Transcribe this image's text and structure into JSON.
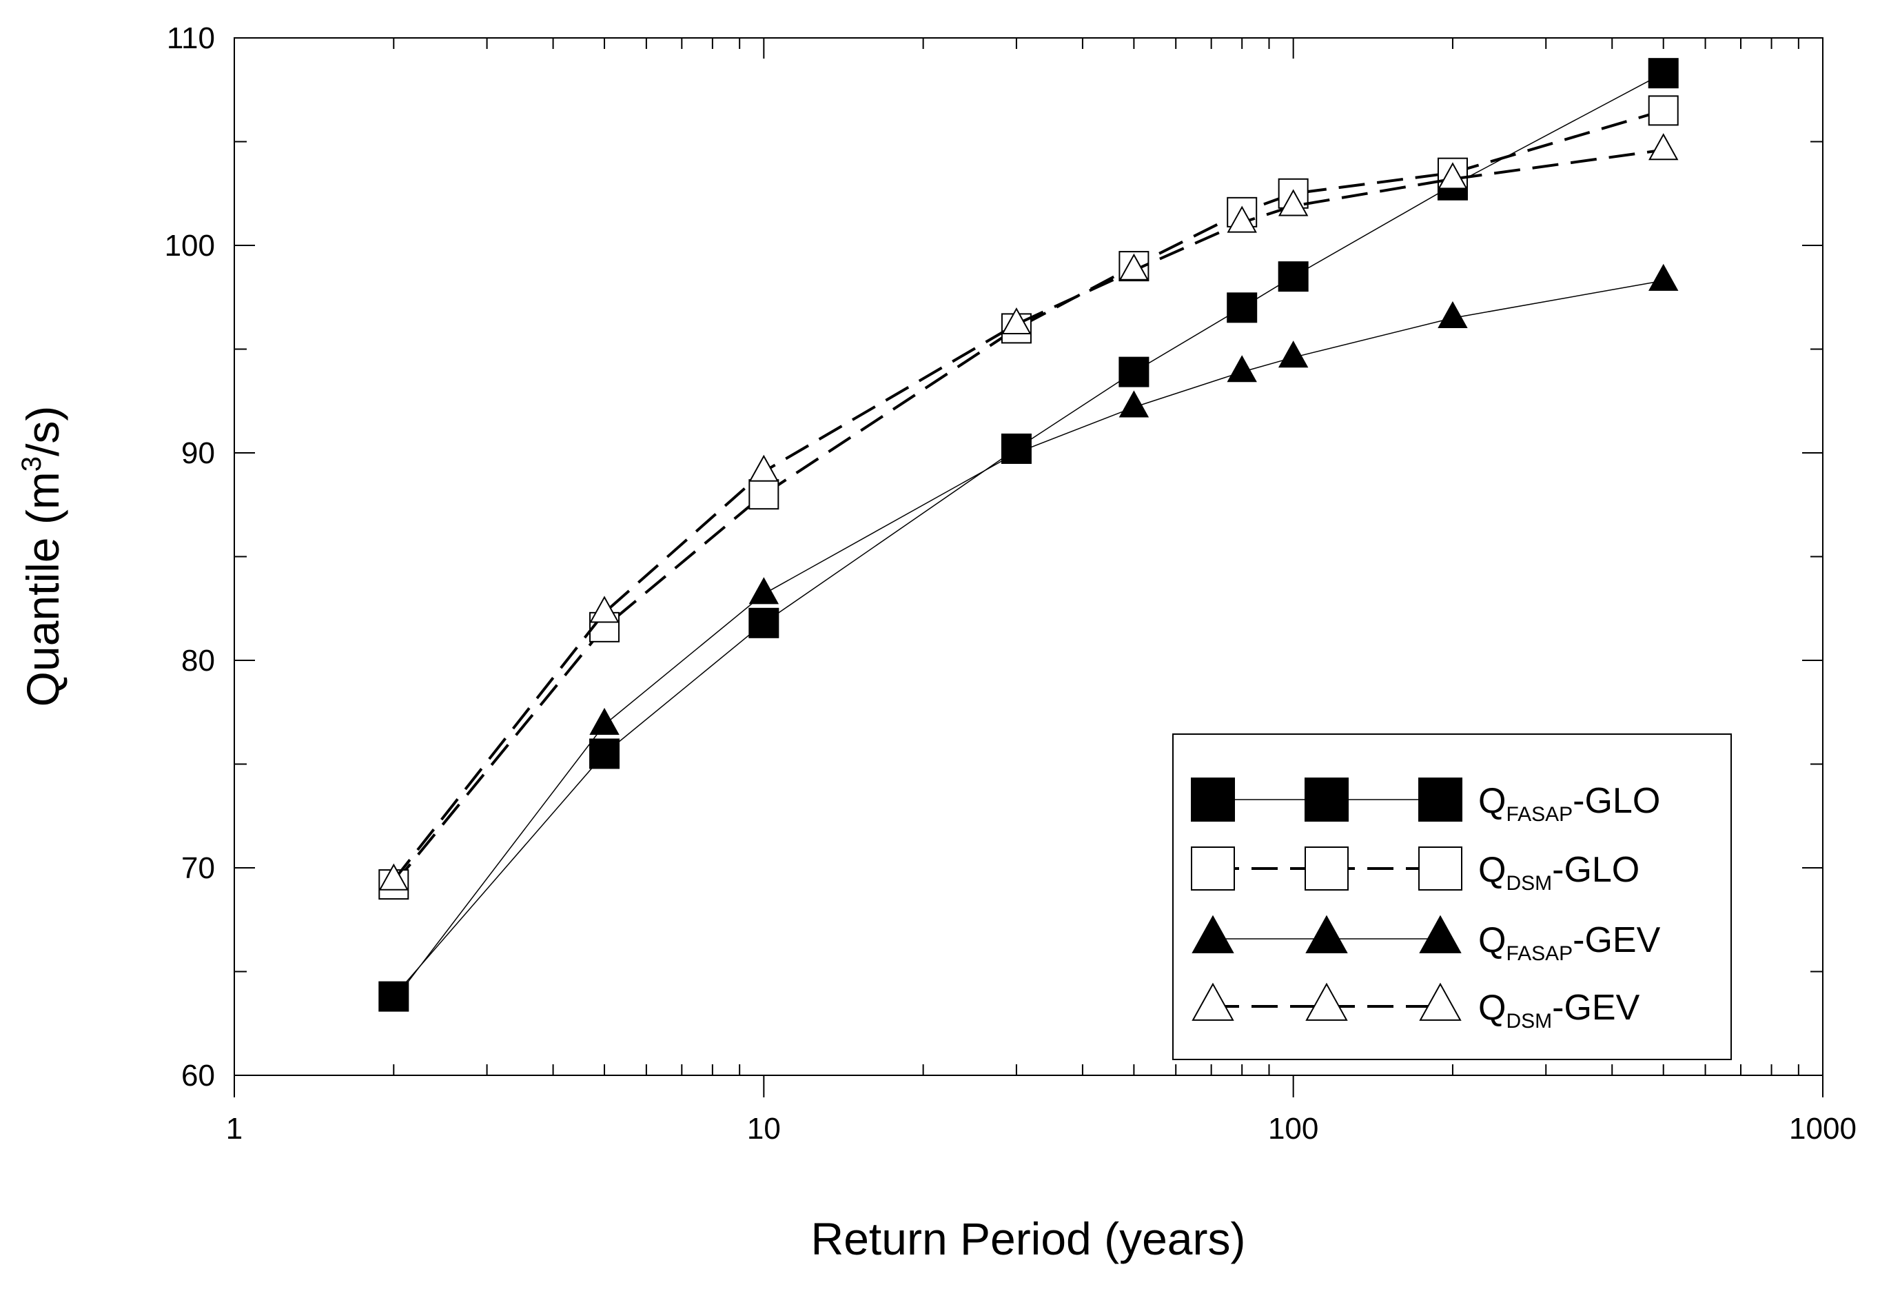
{
  "chart_data": {
    "type": "line",
    "title": "",
    "xlabel": "Return Period (years)",
    "ylabel": {
      "prefix": "Quantile (m",
      "sup": "3",
      "suffix": "/s)"
    },
    "x_scale": "log",
    "xlim": [
      1,
      1000
    ],
    "ylim": [
      60,
      110
    ],
    "x_ticks": [
      1,
      10,
      100,
      1000
    ],
    "x_tick_labels": [
      "1",
      "10",
      "100",
      "1000"
    ],
    "y_ticks": [
      60,
      70,
      80,
      90,
      100,
      110
    ],
    "y_tick_labels": [
      "60",
      "70",
      "80",
      "90",
      "100",
      "110"
    ],
    "y_minor_step": 5,
    "grid": false,
    "legend_position": "bottom-right",
    "x": [
      2,
      5,
      10,
      30,
      50,
      80,
      100,
      200,
      500
    ],
    "series": [
      {
        "name": "QFASAP-GLO",
        "label_main": "Q",
        "label_sub": "FASAP",
        "label_tail": "-GLO",
        "marker": "square-filled",
        "line": "solid-thin",
        "values": [
          63.8,
          75.5,
          81.8,
          90.2,
          93.9,
          97.0,
          98.5,
          102.9,
          108.3
        ]
      },
      {
        "name": "QDSM-GLO",
        "label_main": "Q",
        "label_sub": "DSM",
        "label_tail": "-GLO",
        "marker": "square-open",
        "line": "dashed",
        "values": [
          69.2,
          81.6,
          88.0,
          96.0,
          99.0,
          101.6,
          102.5,
          103.5,
          106.5
        ]
      },
      {
        "name": "QFASAP-GEV",
        "label_main": "Q",
        "label_sub": "FASAP",
        "label_tail": "-GEV",
        "marker": "triangle-filled",
        "line": "solid-thin",
        "values": [
          63.6,
          76.9,
          83.2,
          90.0,
          92.2,
          93.9,
          94.6,
          96.5,
          98.3
        ]
      },
      {
        "name": "QDSM-GEV",
        "label_main": "Q",
        "label_sub": "DSM",
        "label_tail": "-GEV",
        "marker": "triangle-open",
        "line": "dashed",
        "values": [
          69.4,
          82.3,
          89.1,
          96.2,
          98.8,
          101.1,
          101.9,
          103.2,
          104.6
        ]
      }
    ]
  }
}
